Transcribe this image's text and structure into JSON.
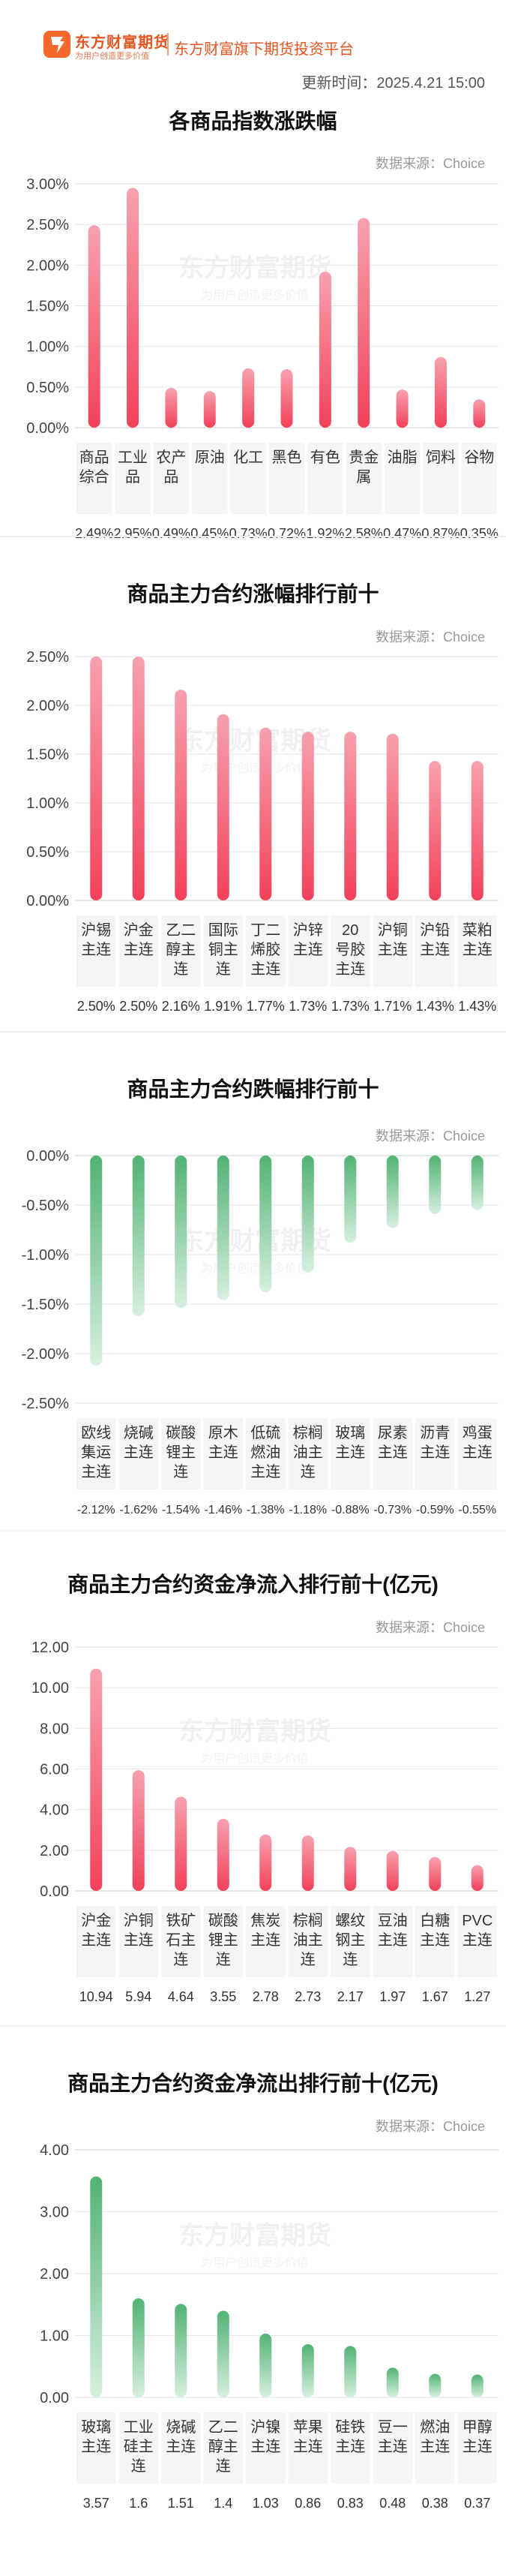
{
  "header": {
    "brand_name": "东方财富期货",
    "brand_slogan": "为用户创造更多价值",
    "platform": "东方财富旗下期货投资平台",
    "update_time": "更新时间：2025.4.21 15:00"
  },
  "source_label": "数据来源：Choice",
  "watermark": {
    "main": "东方财富期货",
    "sub": "为用户创造更多价值"
  },
  "colors": {
    "rise": "#f2415a",
    "fall": "#52b274",
    "brand": "#f56a2c"
  },
  "chart_data": [
    {
      "type": "bar",
      "title": "各商品指数涨跌幅",
      "categories": [
        "商品综合",
        "工业品",
        "农产品",
        "原油",
        "化工",
        "黑色",
        "有色",
        "贵金属",
        "油脂",
        "饲料",
        "谷物"
      ],
      "values": [
        2.49,
        2.95,
        0.49,
        0.45,
        0.73,
        0.72,
        1.92,
        2.58,
        0.47,
        0.87,
        0.35
      ],
      "value_labels": [
        "2.49%",
        "2.95%",
        "0.49%",
        "0.45%",
        "0.73%",
        "0.72%",
        "1.92%",
        "2.58%",
        "0.47%",
        "0.87%",
        "0.35%"
      ],
      "yticks": [
        "3.00%",
        "2.50%",
        "2.00%",
        "1.50%",
        "1.00%",
        "0.50%",
        "0.00%"
      ],
      "ylim": [
        0,
        3
      ],
      "color": "rise",
      "xlabel": "",
      "ylabel": "",
      "grid": true
    },
    {
      "type": "bar",
      "title": "商品主力合约涨幅排行前十",
      "categories": [
        "沪锡主连",
        "沪金主连",
        "乙二醇主连",
        "国际铜主连",
        "丁二烯胶主连",
        "沪锌主连",
        "20号胶主连",
        "沪铜主连",
        "沪铅主连",
        "菜粕主连"
      ],
      "values": [
        2.5,
        2.5,
        2.16,
        1.91,
        1.77,
        1.73,
        1.73,
        1.71,
        1.43,
        1.43
      ],
      "value_labels": [
        "2.50%",
        "2.50%",
        "2.16%",
        "1.91%",
        "1.77%",
        "1.73%",
        "1.73%",
        "1.71%",
        "1.43%",
        "1.43%"
      ],
      "yticks": [
        "2.50%",
        "2.00%",
        "1.50%",
        "1.00%",
        "0.50%",
        "0.00%"
      ],
      "ylim": [
        0,
        2.5
      ],
      "color": "rise",
      "xlabel": "",
      "ylabel": "",
      "grid": true
    },
    {
      "type": "bar",
      "title": "商品主力合约跌幅排行前十",
      "categories": [
        "欧线集运主连",
        "烧碱主连",
        "碳酸锂主连",
        "原木主连",
        "低硫燃油主连",
        "棕榈油主连",
        "玻璃主连",
        "尿素主连",
        "沥青主连",
        "鸡蛋主连"
      ],
      "values": [
        -2.12,
        -1.62,
        -1.54,
        -1.46,
        -1.38,
        -1.18,
        -0.88,
        -0.73,
        -0.59,
        -0.55
      ],
      "value_labels": [
        "-2.12%",
        "-1.62%",
        "-1.54%",
        "-1.46%",
        "-1.38%",
        "-1.18%",
        "-0.88%",
        "-0.73%",
        "-0.59%",
        "-0.55%"
      ],
      "yticks": [
        "0.00%",
        "-0.50%",
        "-1.00%",
        "-1.50%",
        "-2.00%",
        "-2.50%"
      ],
      "ylim": [
        -2.5,
        0
      ],
      "color": "fall",
      "xlabel": "",
      "ylabel": "",
      "grid": true
    },
    {
      "type": "bar",
      "title": "商品主力合约资金净流入排行前十(亿元)",
      "categories": [
        "沪金主连",
        "沪铜主连",
        "铁矿石主连",
        "碳酸锂主连",
        "焦炭主连",
        "棕榈油主连",
        "螺纹钢主连",
        "豆油主连",
        "白糖主连",
        "PVC主连"
      ],
      "values": [
        10.94,
        5.94,
        4.64,
        3.55,
        2.78,
        2.73,
        2.17,
        1.97,
        1.67,
        1.27
      ],
      "value_labels": [
        "10.94",
        "5.94",
        "4.64",
        "3.55",
        "2.78",
        "2.73",
        "2.17",
        "1.97",
        "1.67",
        "1.27"
      ],
      "yticks": [
        "12.00",
        "10.00",
        "8.00",
        "6.00",
        "4.00",
        "2.00",
        "0.00"
      ],
      "ylim": [
        0,
        12
      ],
      "color": "rise",
      "xlabel": "",
      "ylabel": "",
      "grid": true
    },
    {
      "type": "bar",
      "title": "商品主力合约资金净流出排行前十(亿元)",
      "categories": [
        "玻璃主连",
        "工业硅主连",
        "烧碱主连",
        "乙二醇主连",
        "沪镍主连",
        "苹果主连",
        "硅铁主连",
        "豆一主连",
        "燃油主连",
        "甲醇主连"
      ],
      "values": [
        3.57,
        1.6,
        1.51,
        1.4,
        1.03,
        0.86,
        0.83,
        0.48,
        0.38,
        0.37
      ],
      "value_labels": [
        "3.57",
        "1.6",
        "1.51",
        "1.4",
        "1.03",
        "0.86",
        "0.83",
        "0.48",
        "0.38",
        "0.37"
      ],
      "yticks": [
        "4.00",
        "3.00",
        "2.00",
        "1.00",
        "0.00"
      ],
      "ylim": [
        0,
        4
      ],
      "color": "fall",
      "xlabel": "",
      "ylabel": "",
      "grid": true
    }
  ]
}
